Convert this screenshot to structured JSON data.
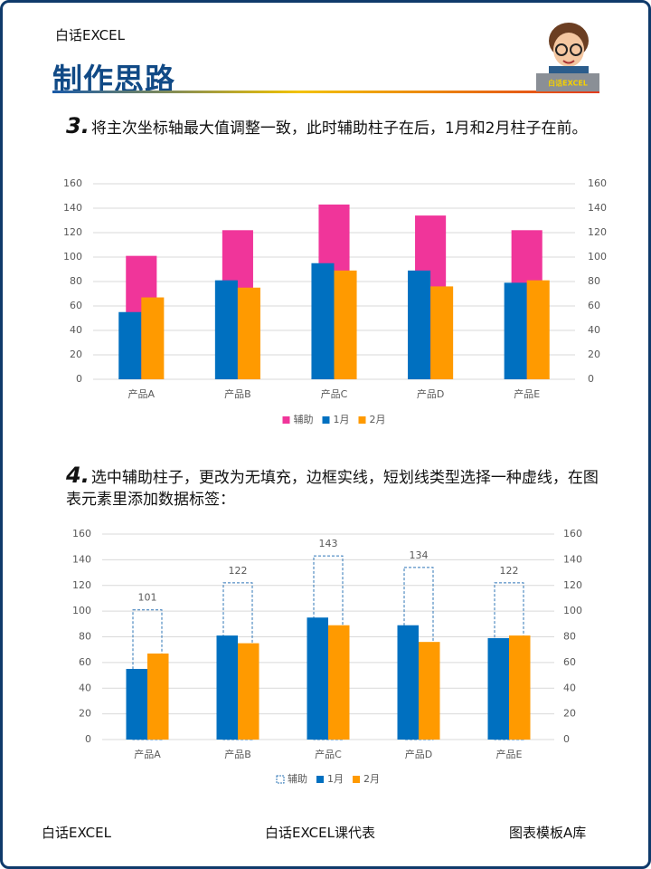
{
  "header": {
    "brand": "白话EXCEL",
    "title": "制作思路",
    "avatar_label": "白话EXCEL"
  },
  "steps": [
    {
      "number": "3.",
      "text": "将主次坐标轴最大值调整一致，此时辅助柱子在后，1月和2月柱子在前。"
    },
    {
      "number": "4.",
      "text": "选中辅助柱子，更改为无填充，边框实线，短划线类型选择一种虚线，在图表元素里添加数据标签："
    }
  ],
  "chart_data": [
    {
      "type": "bar",
      "categories": [
        "产品A",
        "产品B",
        "产品C",
        "产品D",
        "产品E"
      ],
      "series": [
        {
          "name": "辅助",
          "color": "#f0359a",
          "axis": "y2",
          "values": [
            101,
            122,
            143,
            134,
            122
          ]
        },
        {
          "name": "1月",
          "color": "#0070c0",
          "values": [
            55,
            81,
            95,
            89,
            79
          ]
        },
        {
          "name": "2月",
          "color": "#ff9a00",
          "values": [
            67,
            75,
            89,
            76,
            81
          ]
        }
      ],
      "ylim": [
        0,
        160
      ],
      "yticks": [
        0,
        20,
        40,
        60,
        80,
        100,
        120,
        140,
        160
      ],
      "y2lim": [
        0,
        160
      ],
      "y2ticks": [
        0,
        20,
        40,
        60,
        80,
        100,
        120,
        140,
        160
      ],
      "grid": true,
      "legend": "bottom"
    },
    {
      "type": "bar",
      "categories": [
        "产品A",
        "产品B",
        "产品C",
        "产品D",
        "产品E"
      ],
      "series": [
        {
          "name": "辅助",
          "color": "#2e75b6",
          "fill": "none",
          "border": "dashed",
          "axis": "y2",
          "data_labels": true,
          "values": [
            101,
            122,
            143,
            134,
            122
          ]
        },
        {
          "name": "1月",
          "color": "#0070c0",
          "values": [
            55,
            81,
            95,
            89,
            79
          ]
        },
        {
          "name": "2月",
          "color": "#ff9a00",
          "values": [
            67,
            75,
            89,
            76,
            81
          ]
        }
      ],
      "ylim": [
        0,
        160
      ],
      "yticks": [
        0,
        20,
        40,
        60,
        80,
        100,
        120,
        140,
        160
      ],
      "y2lim": [
        0,
        160
      ],
      "y2ticks": [
        0,
        20,
        40,
        60,
        80,
        100,
        120,
        140,
        160
      ],
      "grid": true,
      "legend": "bottom"
    }
  ],
  "footer": {
    "left": "白话EXCEL",
    "center": "白话EXCEL课代表",
    "right": "图表模板A库"
  }
}
